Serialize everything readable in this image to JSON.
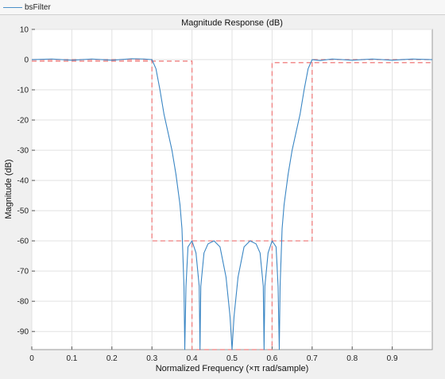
{
  "legend": {
    "label": "bsFilter",
    "color": "#4a90c8"
  },
  "chart_data": {
    "type": "line",
    "title": "Magnitude Response (dB)",
    "xlabel": "Normalized Frequency (×π rad/sample)",
    "ylabel": "Magnitude (dB)",
    "xlim": [
      0,
      1
    ],
    "ylim": [
      -96,
      10
    ],
    "xticks": [
      0,
      0.1,
      0.2,
      0.3,
      0.4,
      0.5,
      0.6,
      0.7,
      0.8,
      0.9
    ],
    "xtick_labels": [
      "0",
      "0.1",
      "0.2",
      "0.3",
      "0.4",
      "0.5",
      "0.6",
      "0.7",
      "0.8",
      "0.9"
    ],
    "yticks": [
      10,
      0,
      -10,
      -20,
      -30,
      -40,
      -50,
      -60,
      -70,
      -80,
      -90
    ],
    "ytick_labels": [
      "10",
      "0",
      "-10",
      "-20",
      "-30",
      "-40",
      "-50",
      "-60",
      "-70",
      "-80",
      "-90"
    ],
    "grid": true,
    "series": [
      {
        "name": "bsFilter",
        "color": "#3a86c4",
        "x": [
          0,
          0.05,
          0.1,
          0.15,
          0.2,
          0.25,
          0.28,
          0.3,
          0.31,
          0.32,
          0.33,
          0.34,
          0.35,
          0.36,
          0.37,
          0.375,
          0.38,
          0.382,
          0.385,
          0.39,
          0.4,
          0.41,
          0.418,
          0.42,
          0.422,
          0.43,
          0.44,
          0.455,
          0.47,
          0.485,
          0.495,
          0.5,
          0.505,
          0.515,
          0.53,
          0.545,
          0.56,
          0.57,
          0.578,
          0.58,
          0.582,
          0.59,
          0.6,
          0.61,
          0.615,
          0.618,
          0.62,
          0.625,
          0.63,
          0.64,
          0.65,
          0.66,
          0.67,
          0.68,
          0.69,
          0.7,
          0.72,
          0.75,
          0.8,
          0.85,
          0.9,
          0.95,
          1.0
        ],
        "y": [
          0,
          0.2,
          -0.2,
          0.2,
          -0.2,
          0.3,
          0.2,
          0,
          -3,
          -10,
          -18,
          -24,
          -30,
          -38,
          -48,
          -56,
          -75,
          -96,
          -75,
          -62,
          -60,
          -64,
          -75,
          -96,
          -75,
          -64,
          -61,
          -60,
          -62,
          -72,
          -85,
          -96,
          -85,
          -72,
          -62,
          -60,
          -61,
          -64,
          -75,
          -96,
          -75,
          -64,
          -60,
          -62,
          -75,
          -96,
          -75,
          -56,
          -48,
          -38,
          -30,
          -24,
          -18,
          -10,
          -3,
          0,
          -0.3,
          0.2,
          -0.2,
          0.2,
          -0.2,
          0.2,
          0
        ]
      }
    ],
    "mask": {
      "color": "#f08080",
      "style": "dashed",
      "x": [
        0,
        0.3,
        0.3,
        0.4,
        0.4,
        0.6,
        0.6,
        0.7,
        0.7,
        1.0
      ],
      "upper_y": [
        0,
        0,
        -60,
        -60,
        -60,
        -60,
        -60,
        -60,
        0,
        0
      ],
      "lower_x": [
        0,
        0.4,
        0.4,
        0.6,
        0.6,
        1.0
      ],
      "lower_y": [
        -0.5,
        -0.5,
        -96,
        -96,
        -1,
        -1
      ]
    }
  }
}
